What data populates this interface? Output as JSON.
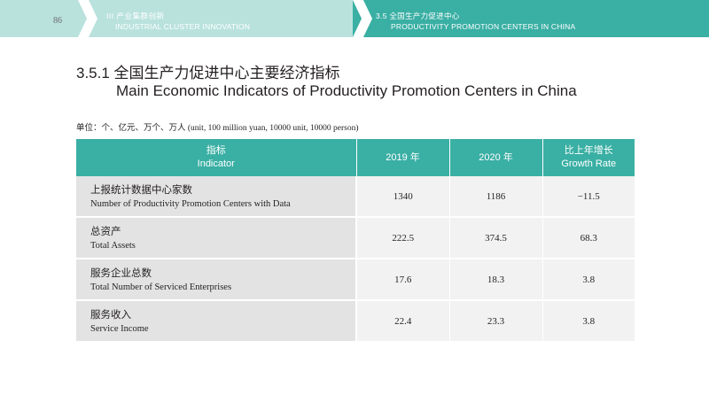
{
  "header": {
    "page_number": "86",
    "left_section_zh": "III  产业集群创新",
    "left_section_en": "INDUSTRIAL CLUSTER INNOVATION",
    "right_section_zh": "3.5  全国生产力促进中心",
    "right_section_en": "PRODUCTIVITY PROMOTION CENTERS IN CHINA",
    "colors": {
      "band": "#b9e2dd",
      "accent": "#3aafa4"
    }
  },
  "title": {
    "zh": "3.5.1 全国生产力促进中心主要经济指标",
    "en": "Main Economic Indicators of Productivity Promotion Centers in China"
  },
  "unit_note": "单位：个、亿元、万个、万人 (unit, 100 million yuan, 10000 unit, 10000 person)",
  "table": {
    "headers": {
      "indicator_zh": "指标",
      "indicator_en": "Indicator",
      "y2019": "2019 年",
      "y2020": "2020 年",
      "growth_zh": "比上年增长",
      "growth_en": "Growth Rate"
    },
    "rows": [
      {
        "zh": "上报统计数据中心家数",
        "en": "Number of Productivity Promotion Centers with Data",
        "v2019": "1340",
        "v2020": "1186",
        "growth": "−11.5"
      },
      {
        "zh": "总资产",
        "en": "Total Assets",
        "v2019": "222.5",
        "v2020": "374.5",
        "growth": "68.3"
      },
      {
        "zh": "服务企业总数",
        "en": "Total Number of Serviced Enterprises",
        "v2019": "17.6",
        "v2020": "18.3",
        "growth": "3.8"
      },
      {
        "zh": "服务收入",
        "en": "Service Income",
        "v2019": "22.4",
        "v2020": "23.3",
        "growth": "3.8"
      }
    ]
  }
}
